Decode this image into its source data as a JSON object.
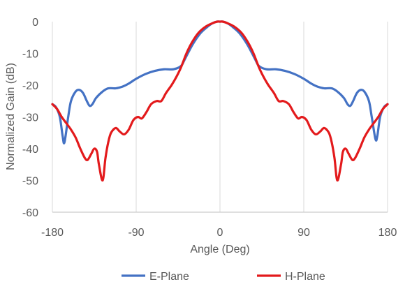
{
  "chart_data": {
    "type": "line",
    "title": "",
    "xlabel": "Angle (Deg)",
    "ylabel": "Normalized Gain (dB)",
    "xlim": [
      -180,
      180
    ],
    "ylim": [
      -60,
      0
    ],
    "xticks": [
      -180,
      -90,
      0,
      90,
      180
    ],
    "yticks": [
      0,
      -10,
      -20,
      -30,
      -40,
      -50,
      -60
    ],
    "grid": "vertical",
    "legend": "bottom",
    "series": [
      {
        "name": "E-Plane",
        "color": "#4472C4",
        "x": [
          -180,
          -176,
          -172,
          -169,
          -167,
          -163,
          -160,
          -155,
          -151,
          -147,
          -143,
          -140,
          -137,
          -133,
          -126,
          -120,
          -112,
          -105,
          -98,
          -90,
          -80,
          -70,
          -60,
          -50,
          -42,
          -38,
          -30,
          -22,
          -15,
          -8,
          -3,
          0,
          3,
          8,
          15,
          22,
          30,
          38,
          42,
          50,
          60,
          70,
          80,
          90,
          98,
          105,
          112,
          120,
          126,
          133,
          137,
          140,
          143,
          147,
          151,
          155,
          160,
          163,
          167,
          169,
          172,
          176,
          180
        ],
        "y": [
          -26,
          -27,
          -30,
          -36,
          -38,
          -30,
          -25,
          -22,
          -21.5,
          -22.5,
          -25,
          -26.5,
          -26,
          -24,
          -22,
          -21,
          -21,
          -20.5,
          -19.5,
          -18,
          -16.5,
          -15.5,
          -15,
          -15,
          -14,
          -12,
          -7.5,
          -4,
          -2,
          -0.5,
          0,
          0,
          0,
          -0.5,
          -2,
          -4,
          -7.5,
          -12,
          -14,
          -15,
          -15,
          -15.5,
          -16.5,
          -18,
          -19.5,
          -20.5,
          -21,
          -21,
          -22,
          -24,
          -26,
          -26.5,
          -25,
          -22.5,
          -21.5,
          -22,
          -25,
          -30,
          -37,
          -36,
          -30,
          -27,
          -26
        ]
      },
      {
        "name": "H-Plane",
        "color": "#E31A1C",
        "x": [
          -180,
          -175,
          -170,
          -165,
          -160,
          -155,
          -150,
          -145,
          -142,
          -138,
          -135,
          -132,
          -130,
          -126,
          -123,
          -120,
          -117,
          -112,
          -108,
          -103,
          -98,
          -93,
          -88,
          -84,
          -79,
          -74,
          -68,
          -63,
          -58,
          -52,
          -47,
          -42,
          -36,
          -30,
          -23,
          -15,
          -8,
          -3,
          0,
          3,
          8,
          15,
          23,
          30,
          36,
          42,
          47,
          52,
          58,
          63,
          68,
          74,
          79,
          84,
          88,
          93,
          98,
          103,
          108,
          112,
          117,
          120,
          123,
          126,
          130,
          132,
          135,
          138,
          142,
          145,
          150,
          155,
          160,
          165,
          170,
          175,
          180
        ],
        "y": [
          -26,
          -27.5,
          -30,
          -32,
          -34,
          -36.5,
          -40,
          -43,
          -43.5,
          -41.5,
          -40,
          -41,
          -45,
          -50,
          -43,
          -38,
          -35,
          -33.5,
          -34.5,
          -35.5,
          -34,
          -31,
          -30,
          -30.5,
          -28.5,
          -26,
          -25,
          -25,
          -22.5,
          -20,
          -17.5,
          -14.5,
          -10,
          -6.5,
          -3.5,
          -1.5,
          -0.5,
          0,
          0,
          0,
          -0.5,
          -1.5,
          -3.5,
          -6.5,
          -10,
          -14.5,
          -17.5,
          -20,
          -22.5,
          -25,
          -25,
          -26,
          -28.5,
          -30.5,
          -30,
          -31,
          -34,
          -35.5,
          -34.5,
          -33.5,
          -35,
          -38,
          -43,
          -50,
          -45,
          -41,
          -40,
          -41.5,
          -43.5,
          -43,
          -40,
          -36.5,
          -34,
          -32,
          -30,
          -27.5,
          -26
        ]
      }
    ]
  }
}
